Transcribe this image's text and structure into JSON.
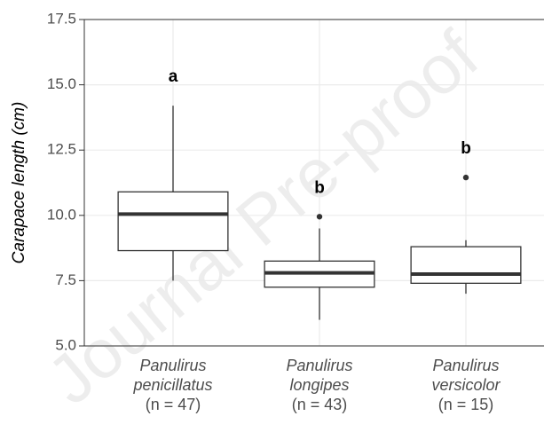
{
  "chart_data": {
    "type": "box",
    "y_label": "Carapace length (cm)",
    "categories": [
      "Panulirus penicillatus",
      "Panulirus longipes",
      "Panulirus versicolor"
    ],
    "n_labels": [
      "(n = 47)",
      "(n = 43)",
      "(n = 15)"
    ],
    "annotations": [
      "a",
      "b",
      "b"
    ],
    "boxes": [
      {
        "whisker_low": 7.5,
        "q1": 8.65,
        "median": 10.05,
        "q3": 10.9,
        "whisker_high": 14.2,
        "outliers": []
      },
      {
        "whisker_low": 6.0,
        "q1": 7.25,
        "median": 7.8,
        "q3": 8.25,
        "whisker_high": 9.5,
        "outliers": [
          9.95
        ]
      },
      {
        "whisker_low": 7.0,
        "q1": 7.4,
        "median": 7.75,
        "q3": 8.8,
        "whisker_high": 9.05,
        "outliers": [
          11.45
        ]
      }
    ],
    "ylim": [
      5.0,
      17.5
    ],
    "yticks": [
      {
        "value": 5,
        "label": "5.0"
      },
      {
        "value": 7.5,
        "label": "7.5"
      },
      {
        "value": 10,
        "label": "10.0"
      },
      {
        "value": 12.5,
        "label": "12.5"
      },
      {
        "value": 15,
        "label": "15.0"
      },
      {
        "value": 17.5,
        "label": "17.5"
      }
    ],
    "grid": true,
    "watermark": "Journal Pre-proof"
  }
}
